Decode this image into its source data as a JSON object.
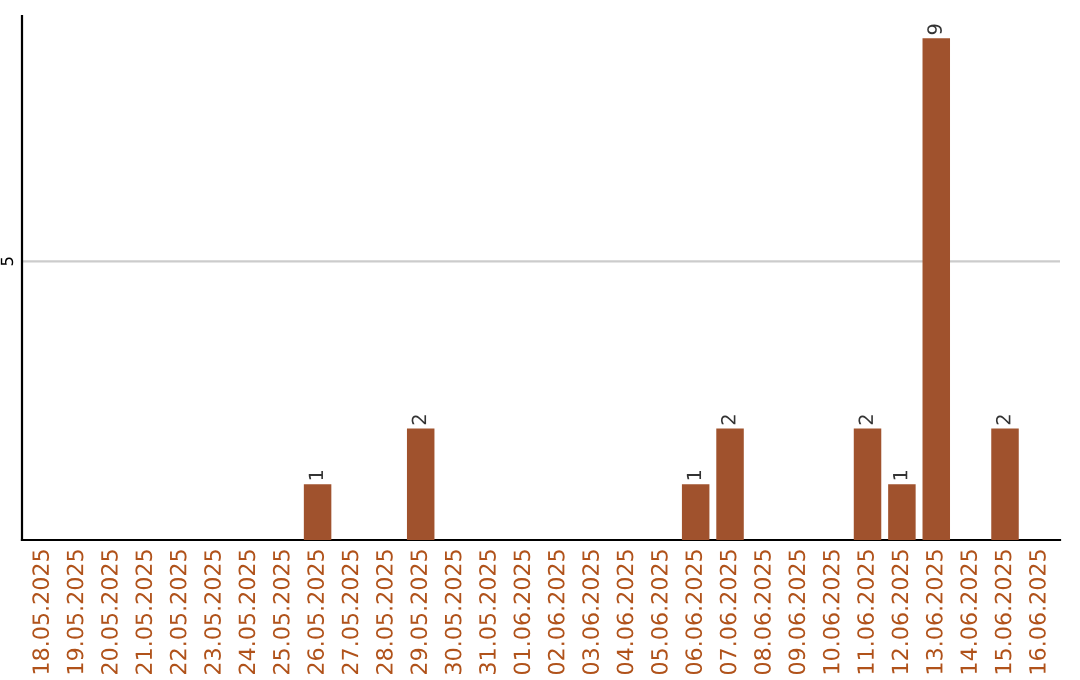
{
  "chart_data": {
    "type": "bar",
    "categories": [
      "18.05.2025",
      "19.05.2025",
      "20.05.2025",
      "21.05.2025",
      "22.05.2025",
      "23.05.2025",
      "24.05.2025",
      "25.05.2025",
      "26.05.2025",
      "27.05.2025",
      "28.05.2025",
      "29.05.2025",
      "30.05.2025",
      "31.05.2025",
      "01.06.2025",
      "02.06.2025",
      "03.06.2025",
      "04.06.2025",
      "05.06.2025",
      "06.06.2025",
      "07.06.2025",
      "08.06.2025",
      "09.06.2025",
      "10.06.2025",
      "11.06.2025",
      "12.06.2025",
      "13.06.2025",
      "14.06.2025",
      "15.06.2025",
      "16.06.2025"
    ],
    "values": [
      0,
      0,
      0,
      0,
      0,
      0,
      0,
      0,
      1,
      0,
      0,
      2,
      0,
      0,
      0,
      0,
      0,
      0,
      0,
      1,
      2,
      0,
      0,
      0,
      2,
      1,
      9,
      0,
      2,
      0
    ],
    "value_labels": [
      null,
      null,
      null,
      null,
      null,
      null,
      null,
      null,
      "1",
      null,
      null,
      "2",
      null,
      null,
      null,
      null,
      null,
      null,
      null,
      "1",
      "2",
      null,
      null,
      null,
      "2",
      "1",
      "9",
      null,
      "2",
      null
    ],
    "color": "#a0522d",
    "ylim": [
      0,
      9.4
    ],
    "yticks": [
      5
    ],
    "grid": "y",
    "legend": false
  }
}
